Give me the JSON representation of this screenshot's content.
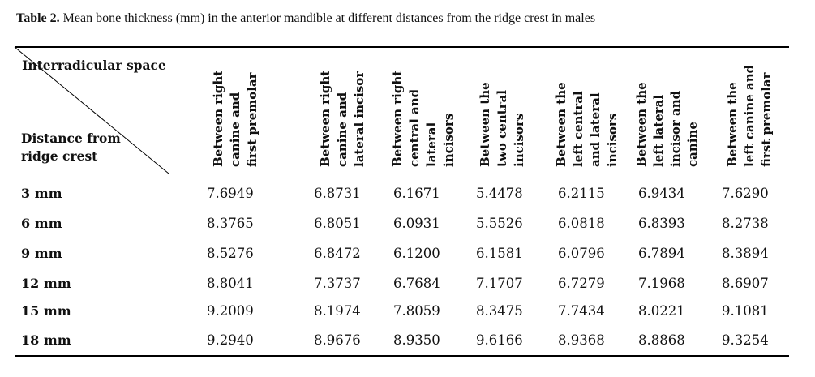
{
  "caption": {
    "label": "Table 2.",
    "text": " Mean bone thickness (mm) in the anterior mandible at different distances from the ridge crest in males"
  },
  "corner": {
    "top_label": "Interradicular space",
    "bottom_label": "Distance from ridge crest"
  },
  "columns": [
    [
      "Between right",
      "canine and",
      "first premolar"
    ],
    [
      "Between right",
      "canine and",
      "lateral incisor"
    ],
    [
      "Between right",
      "central and",
      "lateral",
      "incisors"
    ],
    [
      "Between the",
      "two central",
      "incisors"
    ],
    [
      "Between the",
      "left central",
      "and lateral",
      "incisors"
    ],
    [
      "Between the",
      "left lateral",
      "incisor and",
      "canine"
    ],
    [
      "Between the",
      "left canine and",
      "first premolar"
    ]
  ],
  "rows": [
    {
      "label": "3 mm",
      "values": [
        "7.6949",
        "6.8731",
        "6.1671",
        "5.4478",
        "6.2115",
        "6.9434",
        "7.6290"
      ]
    },
    {
      "label": "6 mm",
      "values": [
        "8.3765",
        "6.8051",
        "6.0931",
        "5.5526",
        "6.0818",
        "6.8393",
        "8.2738"
      ]
    },
    {
      "label": "9 mm",
      "values": [
        "8.5276",
        "6.8472",
        "6.1200",
        "6.1581",
        "6.0796",
        "6.7894",
        "8.3894"
      ]
    },
    {
      "label": "12 mm",
      "values": [
        "8.8041",
        "7.3737",
        "6.7684",
        "7.1707",
        "6.7279",
        "7.1968",
        "8.6907"
      ]
    },
    {
      "label": "15 mm",
      "values": [
        "9.2009",
        "8.1974",
        "7.8059",
        "8.3475",
        "7.7434",
        "8.0221",
        "9.1081"
      ]
    },
    {
      "label": "18 mm",
      "values": [
        "9.2940",
        "8.9676",
        "8.9350",
        "9.6166",
        "8.9368",
        "8.8868",
        "9.3254"
      ]
    }
  ]
}
